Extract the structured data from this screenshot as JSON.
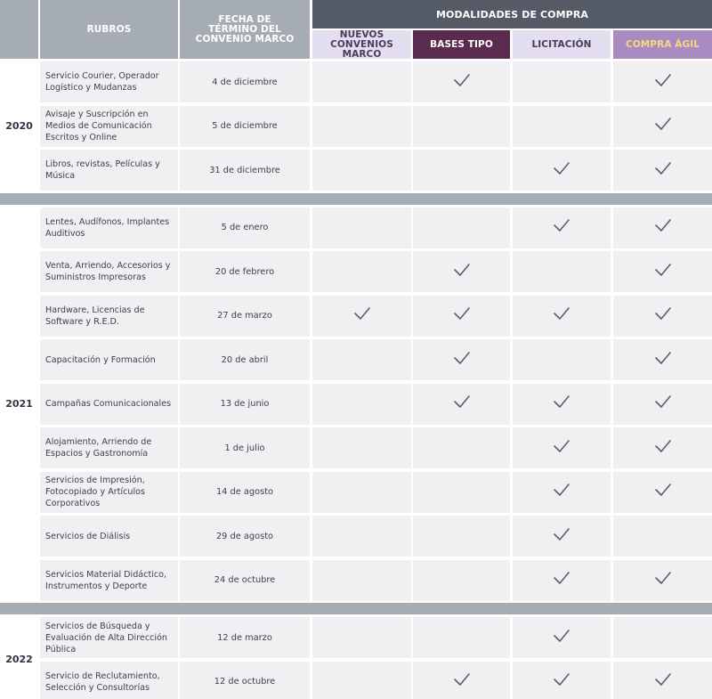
{
  "header": {
    "rubros": "RUBROS",
    "fecha": "FECHA DE TÉRMINO DEL CONVENIO MARCO",
    "modalidades": "MODALIDADES DE COMPRA",
    "columns": [
      {
        "label": "NUEVOS CONVENIOS MARCO",
        "bg": "#e4dff0",
        "color": "#4a3a5c"
      },
      {
        "label": "BASES TIPO",
        "bg": "#5b2a4f",
        "color": "#ffffff"
      },
      {
        "label": "LICITACIÓN",
        "bg": "#e4dff0",
        "color": "#4a3a5c"
      },
      {
        "label": "COMPRA ÁGIL",
        "bg": "#a98bc2",
        "color": "#f5d97a"
      }
    ]
  },
  "groups": [
    {
      "year": "2020",
      "rows": [
        {
          "rubro": "Servicio Courier, Operador Logístico y Mudanzas",
          "fecha": "4 de diciembre",
          "checks": [
            false,
            true,
            false,
            true
          ]
        },
        {
          "rubro": "Avisaje y Suscripción en Medios de Comunicación Escritos y Online",
          "fecha": "5 de diciembre",
          "checks": [
            false,
            false,
            false,
            true
          ]
        },
        {
          "rubro": "Libros, revistas, Películas y Música",
          "fecha": "31 de diciembre",
          "checks": [
            false,
            false,
            true,
            true
          ]
        }
      ]
    },
    {
      "year": "2021",
      "rows": [
        {
          "rubro": "Lentes, Audífonos, Implantes Auditivos",
          "fecha": "5 de enero",
          "checks": [
            false,
            false,
            true,
            true
          ]
        },
        {
          "rubro": "Venta, Arriendo, Accesorios y Suministros Impresoras",
          "fecha": "20 de febrero",
          "checks": [
            false,
            true,
            false,
            true
          ]
        },
        {
          "rubro": "Hardware, Licencias de Software y R.E.D.",
          "fecha": "27 de marzo",
          "checks": [
            true,
            true,
            true,
            true
          ]
        },
        {
          "rubro": "Capacitación y Formación",
          "fecha": "20 de abril",
          "checks": [
            false,
            true,
            false,
            true
          ]
        },
        {
          "rubro": "Campañas Comunicacionales",
          "fecha": "13 de junio",
          "checks": [
            false,
            true,
            true,
            true
          ]
        },
        {
          "rubro": "Alojamiento, Arriendo de Espacios y Gastronomía",
          "fecha": "1 de julio",
          "checks": [
            false,
            false,
            true,
            true
          ]
        },
        {
          "rubro": "Servicios de Impresión, Fotocopiado y Artículos Corporativos",
          "fecha": "14 de agosto",
          "checks": [
            false,
            false,
            true,
            true
          ]
        },
        {
          "rubro": "Servicios de Diálisis",
          "fecha": "29 de agosto",
          "checks": [
            false,
            false,
            true,
            false
          ]
        },
        {
          "rubro": "Servicios Material Didáctico, Instrumentos y Deporte",
          "fecha": "24 de octubre",
          "checks": [
            false,
            false,
            true,
            true
          ]
        }
      ]
    },
    {
      "year": "2022",
      "rows": [
        {
          "rubro": "Servicios de Búsqueda y Evaluación de Alta Dirección Pública",
          "fecha": "12 de marzo",
          "checks": [
            false,
            false,
            true,
            false
          ]
        },
        {
          "rubro": "Servicio de Reclutamiento, Selección y Consultorías",
          "fecha": "12 de octubre",
          "checks": [
            false,
            true,
            true,
            true
          ]
        }
      ]
    }
  ],
  "colors": {
    "cell_bg": "#f0f0f2",
    "header_gray": "#a6acb4",
    "header_dark": "#545a66",
    "check": "#5a5f6b"
  }
}
